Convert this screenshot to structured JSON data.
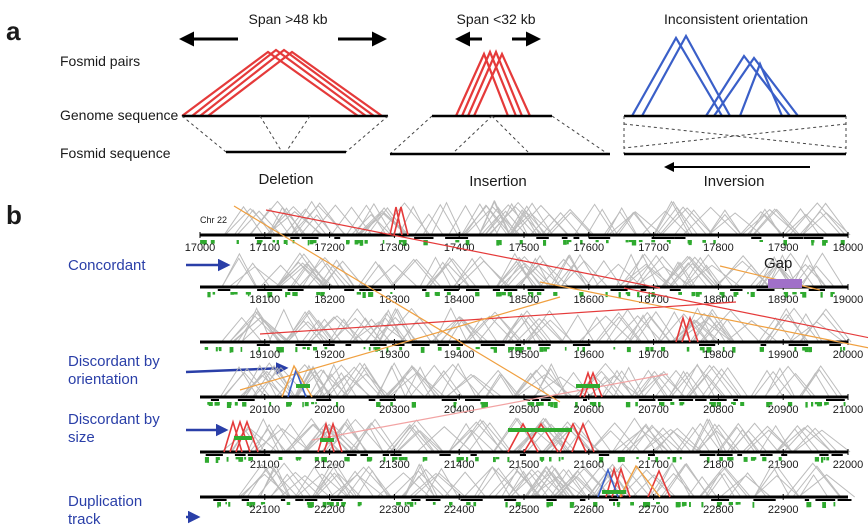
{
  "panel_a": {
    "letter": "a",
    "row_labels": {
      "fosmid_pairs": "Fosmid pairs",
      "genome_sequence": "Genome sequence",
      "fosmid_sequence": "Fosmid sequence"
    },
    "cases": [
      {
        "header": "Span >48 kb",
        "caption": "Deletion"
      },
      {
        "header": "Span <32 kb",
        "caption": "Insertion"
      },
      {
        "header": "Inconsistent orientation",
        "caption": "Inversion"
      }
    ]
  },
  "panel_b": {
    "letter": "b",
    "chromosome": "Chr 22",
    "gap_label": "Gap",
    "side_labels": {
      "concordant": "Concordant",
      "discordant_orientation_1": "Discordant by",
      "discordant_orientation_2": "orientation",
      "discordant_size_1": "Discordant by",
      "discordant_size_2": "size",
      "duplication_1": "Duplication",
      "duplication_2": "track"
    },
    "tracks": [
      {
        "ticks": [
          "17000",
          "17100",
          "17200",
          "17300",
          "17400",
          "17500",
          "17600",
          "17700",
          "17800",
          "17900",
          "18000"
        ]
      },
      {
        "ticks": [
          "18100",
          "18200",
          "18300",
          "18400",
          "18500",
          "18600",
          "18700",
          "18800",
          "18900",
          "19000"
        ]
      },
      {
        "ticks": [
          "19100",
          "19200",
          "19300",
          "19400",
          "19500",
          "19600",
          "19700",
          "19800",
          "19900",
          "20000"
        ]
      },
      {
        "ticks": [
          "20100",
          "20200",
          "20300",
          "20400",
          "20500",
          "20600",
          "20700",
          "20800",
          "20900",
          "21000"
        ]
      },
      {
        "ticks": [
          "21100",
          "21200",
          "21300",
          "21400",
          "21500",
          "21600",
          "21700",
          "21800",
          "21900",
          "22000"
        ]
      },
      {
        "ticks": [
          "22100",
          "22200",
          "22300",
          "22400",
          "22500",
          "22600",
          "22700",
          "22800",
          "22900"
        ]
      }
    ]
  },
  "colors": {
    "red": "#e53a3a",
    "blue": "#3a5fc8",
    "gray": "#b5b5b5",
    "green": "#2faa2f",
    "orange": "#f0a040",
    "purple": "#a070c8",
    "label_blue": "#2a3fa8"
  }
}
